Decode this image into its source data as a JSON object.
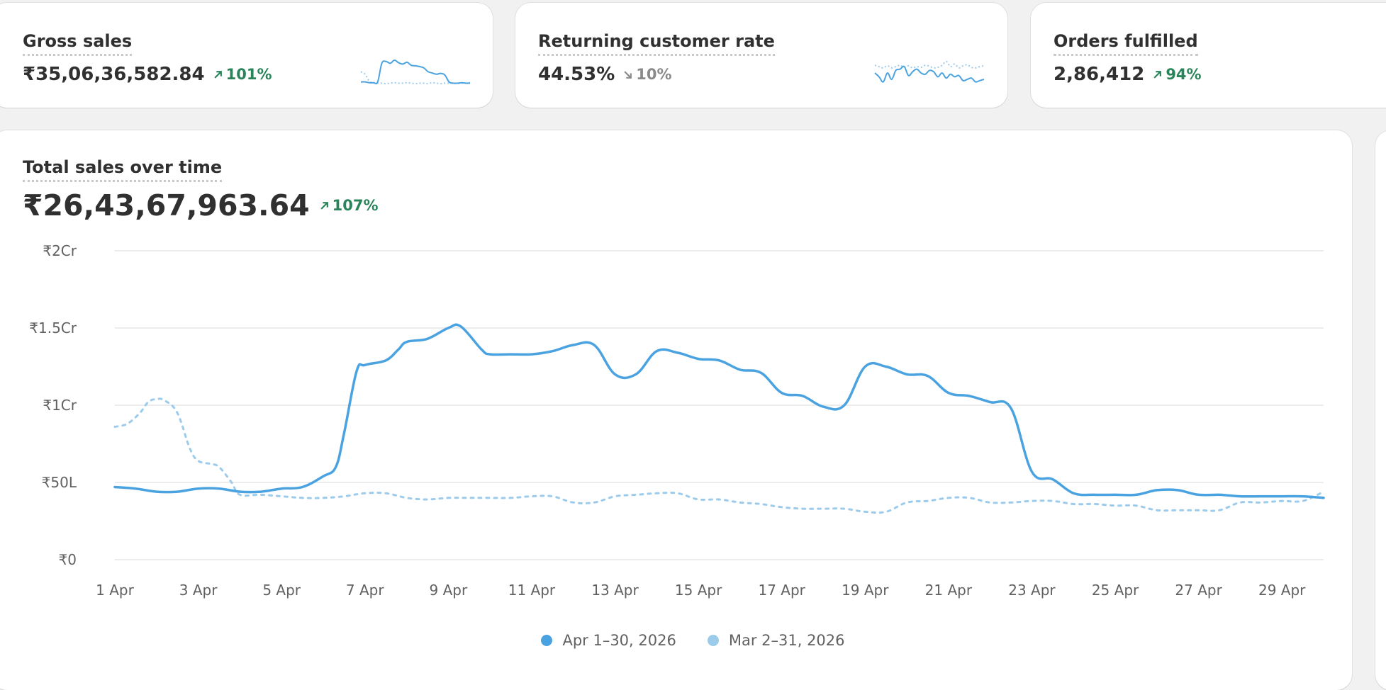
{
  "kpis": [
    {
      "title": "Gross sales",
      "value": "₹35,06,36,582.84",
      "delta": "101%",
      "direction": "up",
      "spark_current": [
        0.15,
        0.15,
        0.12,
        0.12,
        0.15,
        0.88,
        0.95,
        0.88,
        1.0,
        0.9,
        0.85,
        0.92,
        0.8,
        0.78,
        0.75,
        0.7,
        0.55,
        0.5,
        0.45,
        0.48,
        0.42,
        0.15,
        0.1,
        0.1,
        0.12,
        0.1,
        0.1
      ],
      "spark_previous": [
        0.55,
        0.45,
        0.18,
        0.12,
        0.1,
        0.1,
        0.08,
        0.1,
        0.12,
        0.1,
        0.1,
        0.12,
        0.1,
        0.08,
        0.1,
        0.1,
        0.08,
        0.12,
        0.1,
        0.08,
        0.1,
        0.1,
        0.1,
        0.08,
        0.1,
        0.1,
        0.12
      ]
    },
    {
      "title": "Returning customer rate",
      "value": "44.53%",
      "delta": "10%",
      "direction": "down",
      "spark_current": [
        0.5,
        0.35,
        0.15,
        0.5,
        0.25,
        0.6,
        0.65,
        0.75,
        0.4,
        0.55,
        0.65,
        0.5,
        0.45,
        0.6,
        0.55,
        0.35,
        0.5,
        0.3,
        0.45,
        0.35,
        0.4,
        0.2,
        0.25,
        0.3,
        0.15,
        0.2,
        0.25
      ],
      "spark_previous": [
        0.8,
        0.75,
        0.7,
        0.78,
        0.7,
        0.75,
        0.8,
        0.72,
        0.78,
        0.7,
        0.75,
        0.72,
        0.8,
        0.76,
        0.7,
        0.72,
        0.8,
        0.95,
        0.75,
        0.85,
        0.7,
        0.78,
        0.82,
        0.72,
        0.7,
        0.75,
        0.78
      ]
    },
    {
      "title": "Orders fulfilled",
      "value": "2,86,412",
      "delta": "94%",
      "direction": "up"
    }
  ],
  "main": {
    "title": "Total sales over time",
    "value": "₹26,43,67,963.64",
    "delta": "107%",
    "direction": "up"
  },
  "colors": {
    "current": "#4aa3e0",
    "previous": "#9ccbec",
    "up": "#29845a",
    "down": "#8a8a8a",
    "grid": "#e6e6e6"
  },
  "chart_data": {
    "type": "line",
    "title": "Total sales over time",
    "unit": "₹ lakh",
    "x": [
      1,
      2,
      3,
      4,
      5,
      6,
      7,
      8,
      9,
      10,
      11,
      12,
      13,
      14,
      15,
      16,
      17,
      18,
      19,
      20,
      21,
      22,
      23,
      24,
      25,
      26,
      27,
      28,
      29,
      30
    ],
    "x_tick_labels": [
      "1 Apr",
      "3 Apr",
      "5 Apr",
      "7 Apr",
      "9 Apr",
      "11 Apr",
      "13 Apr",
      "15 Apr",
      "17 Apr",
      "19 Apr",
      "21 Apr",
      "23 Apr",
      "25 Apr",
      "27 Apr",
      "29 Apr"
    ],
    "x_tick_positions": [
      1,
      3,
      5,
      7,
      9,
      11,
      13,
      15,
      17,
      19,
      21,
      23,
      25,
      27,
      29
    ],
    "y_ticks": [
      0,
      50,
      100,
      150,
      200
    ],
    "y_tick_labels": [
      "₹0",
      "₹50L",
      "₹1Cr",
      "₹1.5Cr",
      "₹2Cr"
    ],
    "ylim": [
      0,
      200
    ],
    "xlim": [
      1,
      30
    ],
    "grid": true,
    "legend_position": "bottom-center",
    "series": [
      {
        "name": "Apr 1–30, 2026",
        "style": "solid",
        "x": [
          1,
          1.5,
          2,
          2.5,
          3,
          3.5,
          4,
          4.5,
          5,
          5.5,
          6,
          6.3,
          6.5,
          6.8,
          7,
          7.5,
          7.8,
          8,
          8.5,
          9,
          9.3,
          9.8,
          10,
          10.5,
          11,
          11.5,
          12,
          12.5,
          13,
          13.5,
          14,
          14.5,
          15,
          15.5,
          16,
          16.5,
          17,
          17.5,
          18,
          18.5,
          19,
          19.5,
          20,
          20.5,
          21,
          21.5,
          22,
          22.5,
          23,
          23.5,
          24,
          24.5,
          25,
          25.5,
          26,
          26.5,
          27,
          27.5,
          28,
          28.5,
          29,
          29.5,
          30
        ],
        "values": [
          47,
          46,
          44,
          44,
          46,
          46,
          44,
          44,
          46,
          47,
          54,
          60,
          82,
          122,
          126,
          129,
          136,
          141,
          143,
          150,
          151,
          136,
          133,
          133,
          133,
          135,
          139,
          139,
          120,
          120,
          135,
          134,
          130,
          129,
          123,
          121,
          108,
          106,
          99,
          100,
          125,
          125,
          120,
          119,
          108,
          106,
          102,
          98,
          57,
          52,
          43,
          42,
          42,
          42,
          45,
          45,
          42,
          42,
          41,
          41,
          41,
          41,
          40
        ]
      },
      {
        "name": "Mar 2–31, 2026",
        "style": "dashed",
        "x": [
          1,
          1.3,
          1.6,
          1.8,
          2,
          2.2,
          2.5,
          2.8,
          3,
          3.3,
          3.5,
          3.8,
          4,
          4.5,
          5,
          5.5,
          6,
          6.5,
          7,
          7.5,
          8,
          8.5,
          9,
          9.5,
          10,
          10.5,
          11,
          11.5,
          12,
          12.5,
          13,
          13.5,
          14,
          14.5,
          15,
          15.5,
          16,
          16.5,
          17,
          17.5,
          18,
          18.5,
          19,
          19.5,
          20,
          20.5,
          21,
          21.5,
          22,
          22.5,
          23,
          23.5,
          24,
          24.5,
          25,
          25.5,
          26,
          26.5,
          27,
          27.5,
          28,
          28.5,
          29,
          29.5,
          30
        ],
        "values": [
          86,
          88,
          95,
          102,
          104,
          103,
          95,
          72,
          64,
          62,
          60,
          50,
          42,
          42,
          41,
          40,
          40,
          41,
          43,
          43,
          40,
          39,
          40,
          40,
          40,
          40,
          41,
          41,
          37,
          37,
          41,
          42,
          43,
          43,
          39,
          39,
          37,
          36,
          34,
          33,
          33,
          33,
          31,
          31,
          37,
          38,
          40,
          40,
          37,
          37,
          38,
          38,
          36,
          36,
          35,
          35,
          32,
          32,
          32,
          32,
          37,
          37,
          38,
          38,
          44
        ]
      }
    ]
  }
}
